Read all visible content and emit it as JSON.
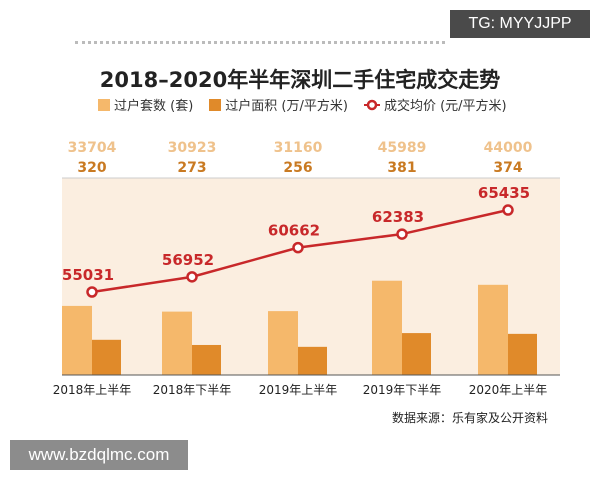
{
  "watermark": "TG: MYYJJPP",
  "website": "www.bzdqlmc.com",
  "chart_data": {
    "type": "bar+line",
    "title": "2018–2020年半年深圳二手住宅成交走势",
    "categories": [
      "2018年上半年",
      "2018年下半年",
      "2019年上半年",
      "2019年下半年",
      "2020年上半年"
    ],
    "series": [
      {
        "name": "过户套数 (套)",
        "type": "bar",
        "color": "#f5b86b",
        "values": [
          33704,
          30923,
          31160,
          45989,
          44000
        ]
      },
      {
        "name": "过户面积 (万/平方米)",
        "type": "bar",
        "color": "#e08a2a",
        "values": [
          320,
          273,
          256,
          381,
          374
        ]
      },
      {
        "name": "成交均价 (元/平方米)",
        "type": "line",
        "color": "#c8282a",
        "values": [
          55031,
          56952,
          60662,
          62383,
          65435
        ]
      }
    ],
    "source": "数据来源：乐有家及公开资料",
    "colors": {
      "plot_bg": "#fbeee0",
      "count_label": "#efc28c",
      "area_label": "#c97a22"
    }
  }
}
